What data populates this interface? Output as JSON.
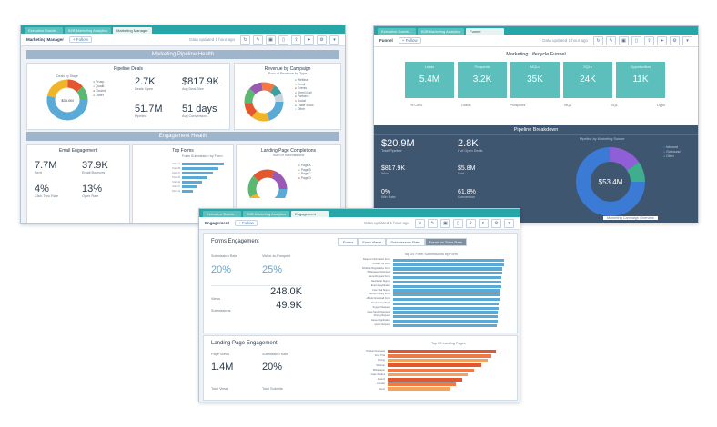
{
  "win1": {
    "tabs": [
      "Executive Dashb...",
      "B2B Marketing Analytics",
      "Marketing Manager"
    ],
    "toolbar": {
      "title": "Marketing Manager",
      "follow": "+ Follow",
      "updated": "Data updated 1 hour ago"
    },
    "band1": "Marketing Pipeline Health",
    "pipeline": {
      "title": "Pipeline Deals",
      "donut_center": "$38.0M",
      "donut_label": "Deals by Stage",
      "legend": [
        "Prosp..",
        "Qualif..",
        "Closed",
        "Other"
      ],
      "m1": {
        "value": "2.7K",
        "label": "Deals Open"
      },
      "m2": {
        "value": "$817.9K",
        "label": "Avg Deal Size"
      },
      "m3": {
        "value": "51.7M",
        "label": "Pipeline"
      },
      "m4": {
        "value": "51 days",
        "label": "Avg Conversion..."
      }
    },
    "campaign": {
      "title": "Revenue by Campaign",
      "sub": "Sum of Revenue by Type",
      "legend": [
        "Webinar",
        "Email",
        "Events",
        "Direct Mail",
        "Partners",
        "Social",
        "Trade Show",
        "Other"
      ]
    },
    "band2": "Engagement Health",
    "email": {
      "title": "Email Engagement",
      "m1": {
        "value": "7.7M",
        "label": "Sent"
      },
      "m2": {
        "value": "37.9K",
        "label": "Email Bounces"
      },
      "m3": {
        "value": "4%",
        "label": "Click Thru Rate"
      },
      "m4": {
        "value": "13%",
        "label": "Open Rate"
      }
    },
    "forms": {
      "title": "Top Forms",
      "sub": "Form Submission by Form"
    },
    "landing": {
      "title": "Landing Page Completions",
      "sub": "Sum of Submissions"
    }
  },
  "win2": {
    "tabs": [
      "Executive Dashb...",
      "B2B Marketing Analytics",
      "Funnel"
    ],
    "toolbar": {
      "title": "Funnel",
      "follow": "+ Follow",
      "updated": "Data updated 1 hour ago"
    },
    "funnel_title": "Marketing Lifecycle Funnel",
    "funnel": [
      {
        "label": "Leads",
        "value": "5.4M"
      },
      {
        "label": "Prospects",
        "value": "3.2K"
      },
      {
        "label": "MQLs",
        "value": "35K"
      },
      {
        "label": "SQLs",
        "value": "24K"
      },
      {
        "label": "Opportunities",
        "value": "11K"
      }
    ],
    "funnel_rates": [
      "% Conv",
      "Leads",
      "Prospects",
      "MQL",
      "SQL",
      "Opps"
    ],
    "band": "Pipeline Breakdown",
    "stats": [
      {
        "value": "$20.9M",
        "label": "Total Pipeline"
      },
      {
        "value": "2.8K",
        "label": "# of Open Deals"
      },
      {
        "value": "$817.9K",
        "label": "Won"
      },
      {
        "value": "$5.8M",
        "label": "Lost"
      },
      {
        "value": "0%",
        "label": "Win Rate"
      },
      {
        "value": "61.8%",
        "label": "Conversion"
      }
    ],
    "donut_title": "Pipeline by Marketing Source",
    "donut_center": "$53.4M",
    "donut_legend": [
      "Inbound",
      "Outbound",
      "Other"
    ],
    "footer": "Marketing Campaign Overview"
  },
  "win3": {
    "tabs": [
      "Executive Dashb...",
      "B2B Marketing Analytics",
      "Engagement"
    ],
    "toolbar": {
      "title": "Engagement",
      "follow": "+ Follow",
      "updated": "Data updated 1 hour ago"
    },
    "forms": {
      "title": "Forms Engagement",
      "subtabs": [
        "Forms",
        "Form Views",
        "Submissions Rate",
        "Forms w/ Subs Rate"
      ],
      "m1": {
        "value": "20%",
        "label": "Submission Rate"
      },
      "m2": {
        "value": "25%",
        "label": "Visitor-to-Prospect"
      },
      "m3": {
        "value": "248.0K",
        "label": "Views"
      },
      "m4": {
        "value": "49.9K",
        "label": "Submissions"
      },
      "chart_sub": "Top 20 Form Submissions by Form",
      "rows": [
        "Request Information Form",
        "Contact Us Form",
        "Webinar Registration Form",
        "Whitepaper Download",
        "Demo Request Form",
        "Newsletter Signup",
        "Event Registration",
        "Free Trial Signup",
        "Partner Inquiry Form",
        "eBook Download Form",
        "Product Feedback",
        "Support Request",
        "Case Study Download",
        "Pricing Request",
        "Career Application",
        "Quote Request"
      ],
      "values": [
        0.95,
        0.95,
        0.94,
        0.94,
        0.93,
        0.93,
        0.93,
        0.92,
        0.92,
        0.92,
        0.91,
        0.91,
        0.9,
        0.9,
        0.9,
        0.89
      ]
    },
    "landing": {
      "title": "Landing Page Engagement",
      "m1": {
        "value": "1.4M",
        "label": "Page Views"
      },
      "m2": {
        "value": "20%",
        "label": "Submission Rate"
      },
      "m3": {
        "label": "Total Views"
      },
      "m4": {
        "label": "Total Submits"
      },
      "chart_sub": "Top 20 Landing Pages",
      "rows": [
        "Product Overview",
        "Free Trial",
        "Pricing",
        "Webinar",
        "Whitepaper",
        "Case Studies",
        "Events",
        "Contact",
        "Demo"
      ],
      "values": [
        0.9,
        0.86,
        0.83,
        0.78,
        0.72,
        0.67,
        0.62,
        0.57,
        0.52
      ],
      "colors": [
        "#e4572e",
        "#f07a46",
        "#f3a35c",
        "#e4572e",
        "#f07a46",
        "#f3a35c",
        "#e4572e",
        "#f07a46",
        "#f3a35c"
      ]
    }
  },
  "colors": {
    "teal": "#26a6a6",
    "funnel": "#5dbfbc",
    "dark": "#3f5670",
    "bar": "#5aaad8"
  }
}
